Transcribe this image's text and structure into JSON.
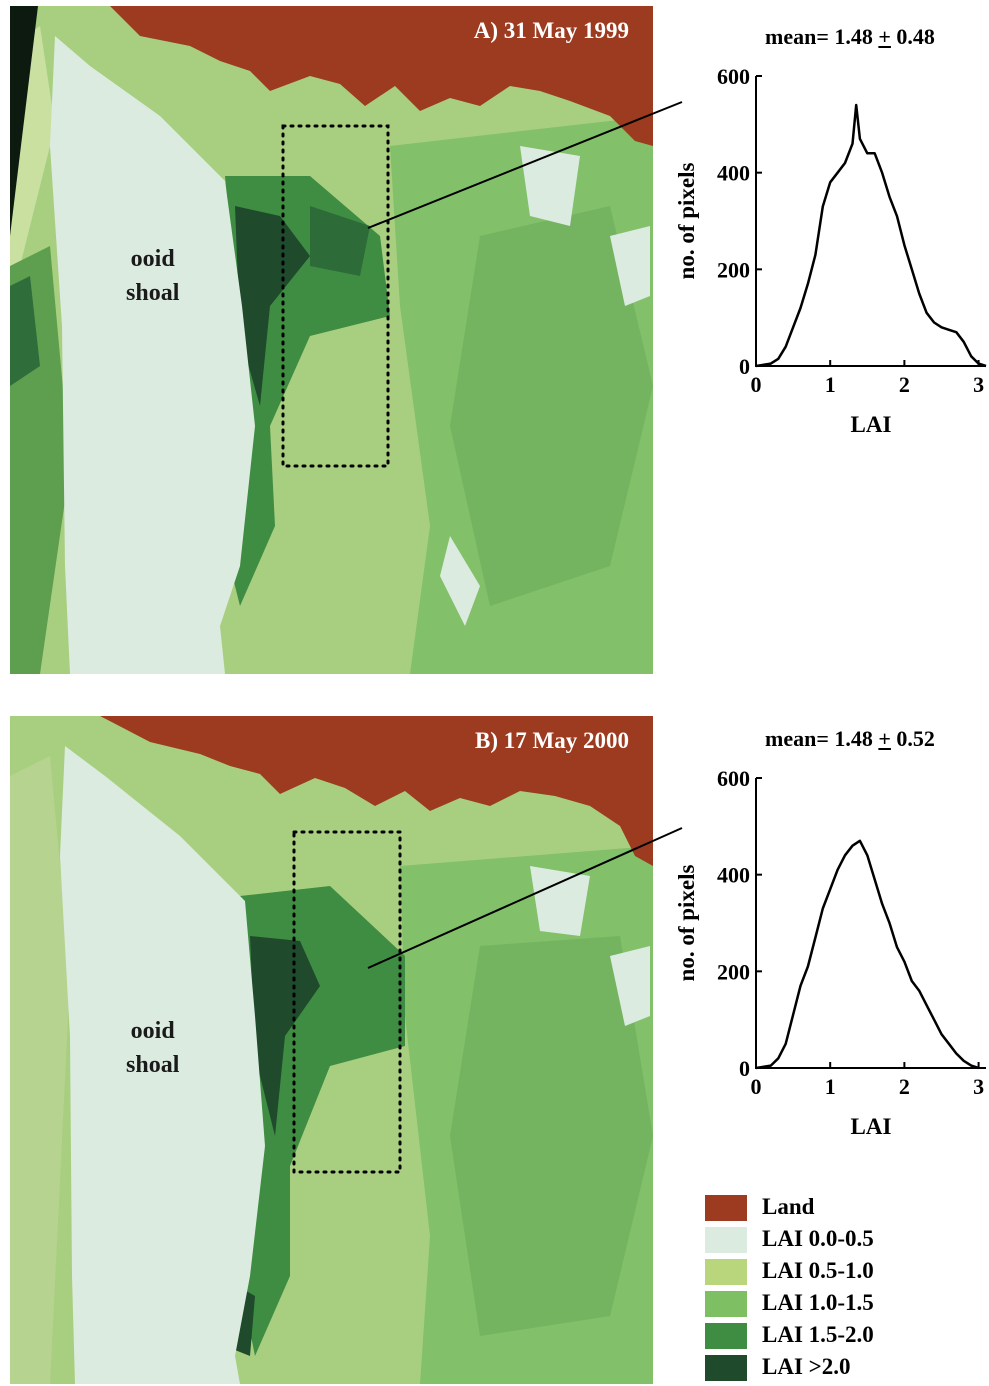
{
  "colors": {
    "land": "#9c3b1f",
    "lai_0_05": "#dcebe0",
    "lai_05_10": "#b9d67c",
    "lai_10_15": "#7fbf64",
    "lai_15_20": "#3f8d43",
    "lai_gt_20": "#1f4a2c"
  },
  "panels": [
    {
      "title": "A) 31 May 1999",
      "shoal_label_line1": "ooid",
      "shoal_label_line2": "shoal",
      "histogram": {
        "mean_prefix": "mean= 1.48 ",
        "pm": "+",
        "mean_suffix": " 0.48",
        "ylabel": "no. of pixels",
        "xlabel": "LAI"
      }
    },
    {
      "title": "B) 17 May 2000",
      "shoal_label_line1": "ooid",
      "shoal_label_line2": "shoal",
      "histogram": {
        "mean_prefix": "mean= 1.48 ",
        "pm": "+",
        "mean_suffix": " 0.52",
        "ylabel": "no. of pixels",
        "xlabel": "LAI"
      }
    }
  ],
  "chart_data": [
    {
      "type": "line",
      "xlabel": "LAI",
      "ylabel": "no. of pixels",
      "xlim": [
        0,
        3.1
      ],
      "ylim": [
        0,
        600
      ],
      "xticks": [
        "0",
        "1",
        "2",
        "3"
      ],
      "yticks": [
        "0",
        "200",
        "400",
        "600"
      ],
      "x": [
        0.0,
        0.2,
        0.3,
        0.4,
        0.5,
        0.6,
        0.7,
        0.8,
        0.9,
        1.0,
        1.1,
        1.2,
        1.3,
        1.35,
        1.4,
        1.5,
        1.6,
        1.7,
        1.8,
        1.9,
        2.0,
        2.1,
        2.2,
        2.3,
        2.4,
        2.5,
        2.6,
        2.7,
        2.8,
        2.9,
        3.0,
        3.1
      ],
      "y": [
        0,
        5,
        15,
        40,
        80,
        120,
        170,
        230,
        330,
        380,
        400,
        420,
        460,
        540,
        470,
        440,
        440,
        400,
        350,
        310,
        250,
        200,
        150,
        110,
        90,
        80,
        75,
        70,
        50,
        20,
        5,
        0
      ]
    },
    {
      "type": "line",
      "xlabel": "LAI",
      "ylabel": "no. of pixels",
      "xlim": [
        0,
        3.1
      ],
      "ylim": [
        0,
        600
      ],
      "xticks": [
        "0",
        "1",
        "2",
        "3"
      ],
      "yticks": [
        "0",
        "200",
        "400",
        "600"
      ],
      "x": [
        0.0,
        0.2,
        0.3,
        0.4,
        0.5,
        0.6,
        0.7,
        0.8,
        0.9,
        1.0,
        1.1,
        1.2,
        1.3,
        1.4,
        1.5,
        1.6,
        1.7,
        1.8,
        1.9,
        2.0,
        2.1,
        2.2,
        2.3,
        2.4,
        2.5,
        2.6,
        2.7,
        2.8,
        2.9,
        3.0
      ],
      "y": [
        0,
        5,
        20,
        50,
        110,
        170,
        210,
        270,
        330,
        370,
        410,
        440,
        460,
        470,
        440,
        390,
        340,
        300,
        250,
        220,
        180,
        160,
        130,
        100,
        70,
        50,
        30,
        15,
        5,
        0
      ]
    }
  ],
  "legend": [
    {
      "label": "Land",
      "color": "#9c3b1f"
    },
    {
      "label": "LAI 0.0-0.5",
      "color": "#dcebe0"
    },
    {
      "label": "LAI 0.5-1.0",
      "color": "#b9d67c"
    },
    {
      "label": "LAI 1.0-1.5",
      "color": "#7fbf64"
    },
    {
      "label": "LAI 1.5-2.0",
      "color": "#3f8d43"
    },
    {
      "label": "LAI >2.0",
      "color": "#1f4a2c"
    }
  ]
}
